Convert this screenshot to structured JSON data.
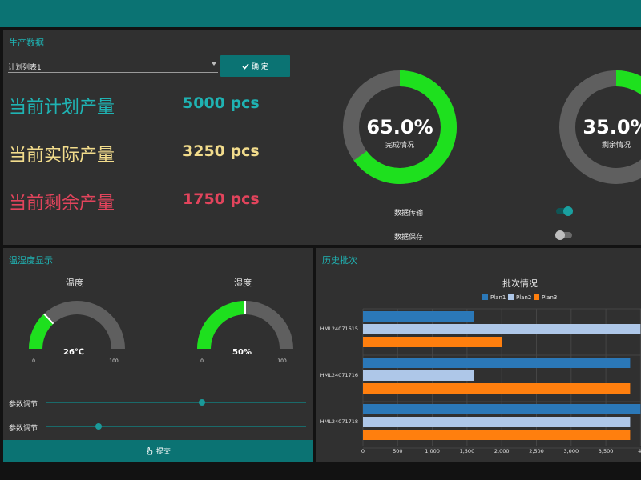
{
  "colors": {
    "teal": "#0b7373",
    "green": "#1ee01e",
    "gray": "#5f5f5f",
    "cyan_text": "#1fb3b3",
    "yellow_text": "#f2dc8c",
    "red_text": "#e2445c"
  },
  "production": {
    "title": "生产数据",
    "plan_select": {
      "value": "计划列表1"
    },
    "confirm_label": "确 定",
    "rows": [
      {
        "label": "当前计划产量",
        "value": "5000 pcs",
        "color": "#1fb3b3"
      },
      {
        "label": "当前实际产量",
        "value": "3250 pcs",
        "color": "#f2dc8c"
      },
      {
        "label": "当前剩余产量",
        "value": "1750 pcs",
        "color": "#e2445c"
      }
    ],
    "donuts": [
      {
        "value_text": "65.0%",
        "label": "完成情况",
        "fraction": 0.65
      },
      {
        "value_text": "35.0%",
        "label": "剩余情况",
        "fraction": 0.35
      }
    ],
    "toggles": [
      {
        "label": "数据传输",
        "on": true
      },
      {
        "label": "数据保存",
        "on": false
      }
    ]
  },
  "temperature": {
    "title": "温湿度显示",
    "gauges": [
      {
        "title": "温度",
        "value_text": "26℃",
        "value": 26,
        "min_label": "0",
        "max_label": "100"
      },
      {
        "title": "湿度",
        "value_text": "50%",
        "value": 50,
        "min_label": "0",
        "max_label": "100"
      }
    ],
    "sliders": [
      {
        "label": "参数调节",
        "value": 0.6
      },
      {
        "label": "参数调节",
        "value": 0.2
      }
    ],
    "submit_label": "提交"
  },
  "history": {
    "title": "历史批次",
    "chart_data": {
      "type": "bar",
      "orientation": "horizontal",
      "title": "批次情况",
      "categories": [
        "HML24071615",
        "HML24071716",
        "HML24071718"
      ],
      "series": [
        {
          "name": "Plan1",
          "color": "#2b78b8",
          "values": [
            1600,
            3850,
            4000
          ]
        },
        {
          "name": "Plan2",
          "color": "#aec7e8",
          "values": [
            4000,
            1600,
            3850
          ]
        },
        {
          "name": "Plan3",
          "color": "#ff7f0e",
          "values": [
            2000,
            3850,
            3850
          ]
        }
      ],
      "xlim": [
        0,
        4000
      ],
      "x_ticks": [
        "0",
        "500",
        "1,000",
        "1,500",
        "2,000",
        "2,500",
        "3,000",
        "3,500",
        "4,"
      ],
      "legend_position": "top",
      "grid": true
    }
  }
}
